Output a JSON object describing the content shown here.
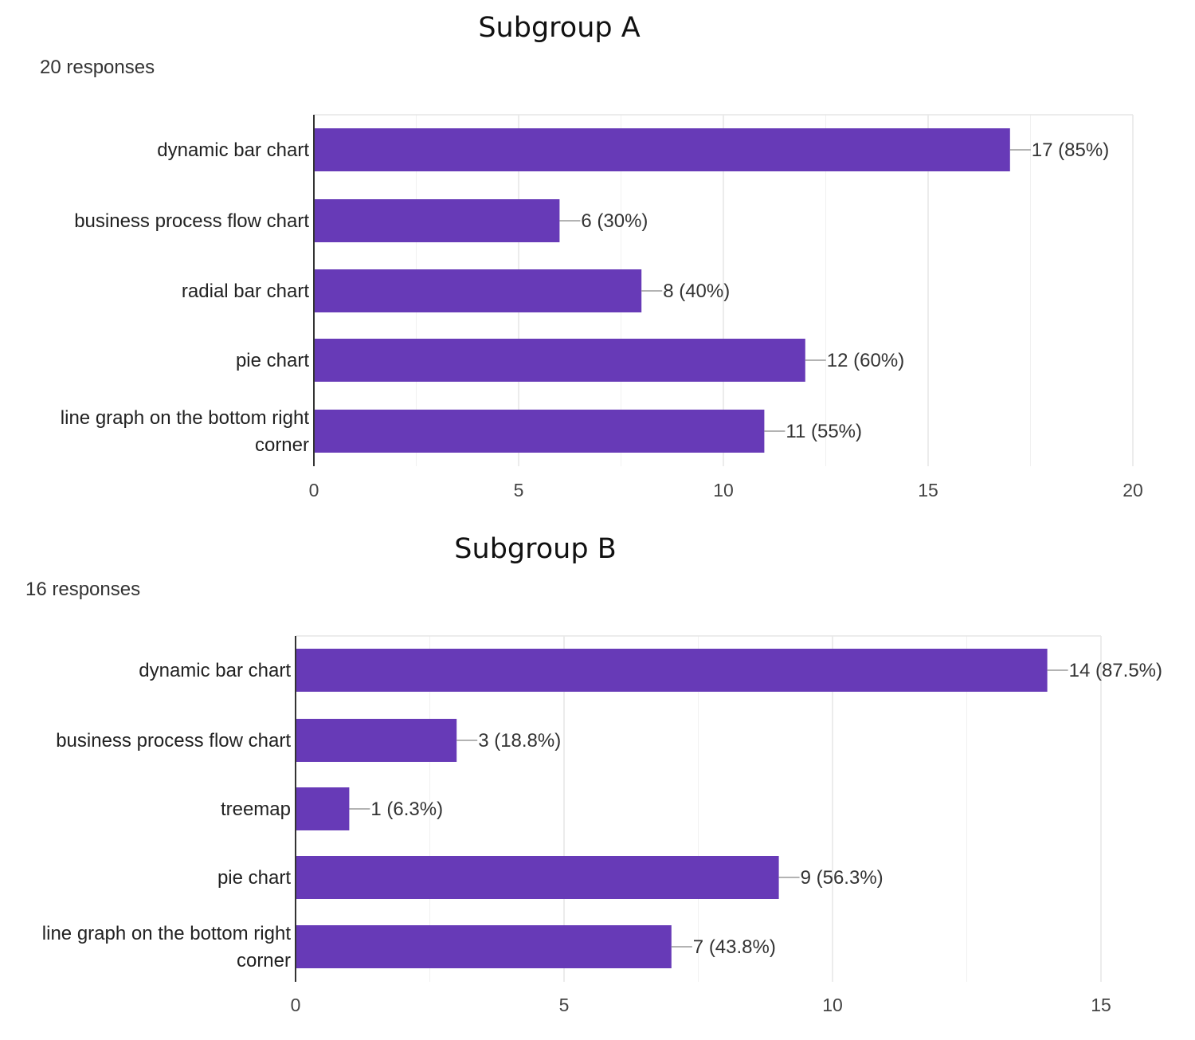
{
  "chart_data": [
    {
      "type": "bar",
      "orientation": "horizontal",
      "title": "Subgroup A",
      "subtitle": "20 responses",
      "categories": [
        [
          "dynamic bar chart"
        ],
        [
          "business process flow chart"
        ],
        [
          "radial bar chart"
        ],
        [
          "pie chart"
        ],
        [
          "line graph on the bottom right",
          "corner"
        ]
      ],
      "values": [
        17,
        6,
        8,
        12,
        11
      ],
      "data_labels": [
        "17 (85%)",
        "6 (30%)",
        "8 (40%)",
        "12 (60%)",
        "11 (55%)"
      ],
      "xlim": [
        0,
        20
      ],
      "xticks": [
        0,
        5,
        10,
        15,
        20
      ],
      "xtick_labels": [
        "0",
        "5",
        "10",
        "15",
        "20"
      ],
      "grid": true,
      "bar_color": "#673ab7",
      "grid_color": "#e6e6e6",
      "axis_color": "#333333"
    },
    {
      "type": "bar",
      "orientation": "horizontal",
      "title": "Subgroup B",
      "subtitle": "16 responses",
      "categories": [
        [
          "dynamic bar chart"
        ],
        [
          "business process flow chart"
        ],
        [
          "treemap"
        ],
        [
          "pie chart"
        ],
        [
          "line graph on the bottom right",
          "corner"
        ]
      ],
      "values": [
        14,
        3,
        1,
        9,
        7
      ],
      "data_labels": [
        "14 (87.5%)",
        "3 (18.8%)",
        "1 (6.3%)",
        "9 (56.3%)",
        "7 (43.8%)"
      ],
      "xlim": [
        0,
        15
      ],
      "xticks": [
        0,
        5,
        10,
        15
      ],
      "xtick_labels": [
        "0",
        "5",
        "10",
        "15"
      ],
      "grid": true,
      "bar_color": "#673ab7",
      "grid_color": "#e6e6e6",
      "axis_color": "#333333"
    }
  ]
}
